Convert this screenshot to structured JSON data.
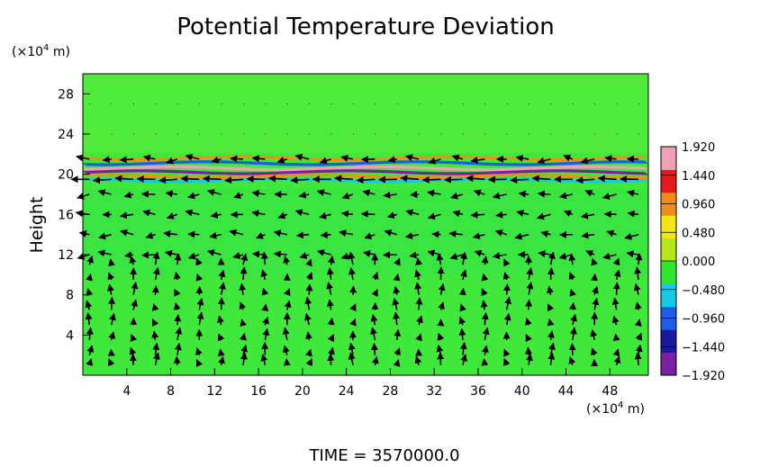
{
  "chart_data": {
    "type": "heatmap",
    "title": "Potential Temperature Deviation",
    "ylabel": "Height",
    "x_unit_label": [
      "(×10",
      "4",
      " m)"
    ],
    "y_unit_label": [
      "(×10",
      "4",
      " m)"
    ],
    "xlim": [
      0,
      51.5
    ],
    "ylim": [
      0,
      30
    ],
    "x_ticks": [
      4,
      8,
      12,
      16,
      20,
      24,
      28,
      32,
      36,
      40,
      44,
      48
    ],
    "x_tick_labels": [
      "4",
      "8",
      "12",
      "16",
      "20",
      "24",
      "28",
      "32",
      "36",
      "40",
      "44",
      "48"
    ],
    "y_ticks": [
      4,
      8,
      12,
      16,
      20,
      24,
      28
    ],
    "y_tick_labels": [
      "4",
      "8",
      "12",
      "16",
      "20",
      "24",
      "28"
    ],
    "colorbar": {
      "range": [
        -1.92,
        1.92
      ],
      "ticks": [
        1.92,
        1.44,
        0.96,
        0.48,
        0.0,
        -0.48,
        -0.96,
        -1.44,
        -1.92
      ],
      "labels": [
        "1.920",
        "1.440",
        "0.960",
        "0.480",
        "0.000",
        "−0.480",
        "−0.960",
        "−1.440",
        "−1.920"
      ],
      "colors": [
        "#7a1fa2",
        "#1a1a9e",
        "#1f5be6",
        "#19c7e6",
        "#2de62d",
        "#b4e61e",
        "#f2e61a",
        "#f28c1a",
        "#e61a1a",
        "#f0a0b4"
      ]
    },
    "field_bands": [
      {
        "height": 21.6,
        "value": 0.9
      },
      {
        "height": 21.1,
        "value": -0.9
      },
      {
        "height": 20.6,
        "value": 1.8
      },
      {
        "height": 20.2,
        "value": -1.6
      },
      {
        "height": 19.8,
        "value": 1.1
      },
      {
        "height": 19.4,
        "value": -0.6
      }
    ],
    "vector_field": {
      "x_spacing": 2,
      "heights": [
        27,
        24,
        21.5,
        19.5,
        18,
        16,
        14,
        12,
        11,
        9.5,
        8,
        6.5,
        5,
        3.5,
        2,
        1
      ],
      "jet_height": 19.3,
      "jet_direction": "westward"
    }
  },
  "footer": {
    "time_label": "TIME  =  3570000.0"
  }
}
